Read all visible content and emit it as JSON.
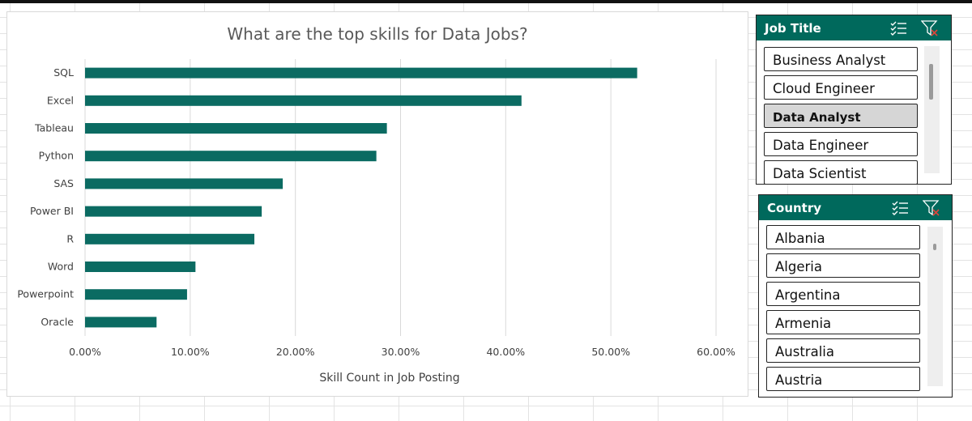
{
  "chart_data": {
    "type": "bar",
    "orientation": "horizontal",
    "title": "What are the top skills for Data Jobs?",
    "xlabel": "Skill Count in Job Posting",
    "ylabel": "",
    "categories": [
      "SQL",
      "Excel",
      "Tableau",
      "Python",
      "SAS",
      "Power BI",
      "R",
      "Word",
      "Powerpoint",
      "Oracle"
    ],
    "values": [
      0.525,
      0.415,
      0.287,
      0.277,
      0.188,
      0.168,
      0.161,
      0.105,
      0.097,
      0.068
    ],
    "xlim": [
      0,
      0.6
    ],
    "ticks": [
      "0.00%",
      "10.00%",
      "20.00%",
      "30.00%",
      "40.00%",
      "50.00%",
      "60.00%"
    ],
    "grid": true,
    "bar_color": "#0b6b62"
  },
  "slicers": {
    "job_title": {
      "title": "Job Title",
      "items": [
        {
          "label": "Business Analyst",
          "selected": false
        },
        {
          "label": "Cloud Engineer",
          "selected": false
        },
        {
          "label": "Data Analyst",
          "selected": true
        },
        {
          "label": "Data Engineer",
          "selected": false
        },
        {
          "label": "Data Scientist",
          "selected": false
        }
      ],
      "multiselect_icon": "multiselect-icon",
      "clear_filter_icon": "clear-filter-icon"
    },
    "country": {
      "title": "Country",
      "items": [
        {
          "label": "Albania",
          "selected": false
        },
        {
          "label": "Algeria",
          "selected": false
        },
        {
          "label": "Argentina",
          "selected": false
        },
        {
          "label": "Armenia",
          "selected": false
        },
        {
          "label": "Australia",
          "selected": false
        },
        {
          "label": "Austria",
          "selected": false
        }
      ],
      "multiselect_icon": "multiselect-icon",
      "clear_filter_icon": "clear-filter-icon"
    }
  },
  "colors": {
    "accent": "#00695c",
    "bar": "#0b6b62",
    "selected_item": "#d6d6d6",
    "clear_filter_x": "#e0443a"
  }
}
